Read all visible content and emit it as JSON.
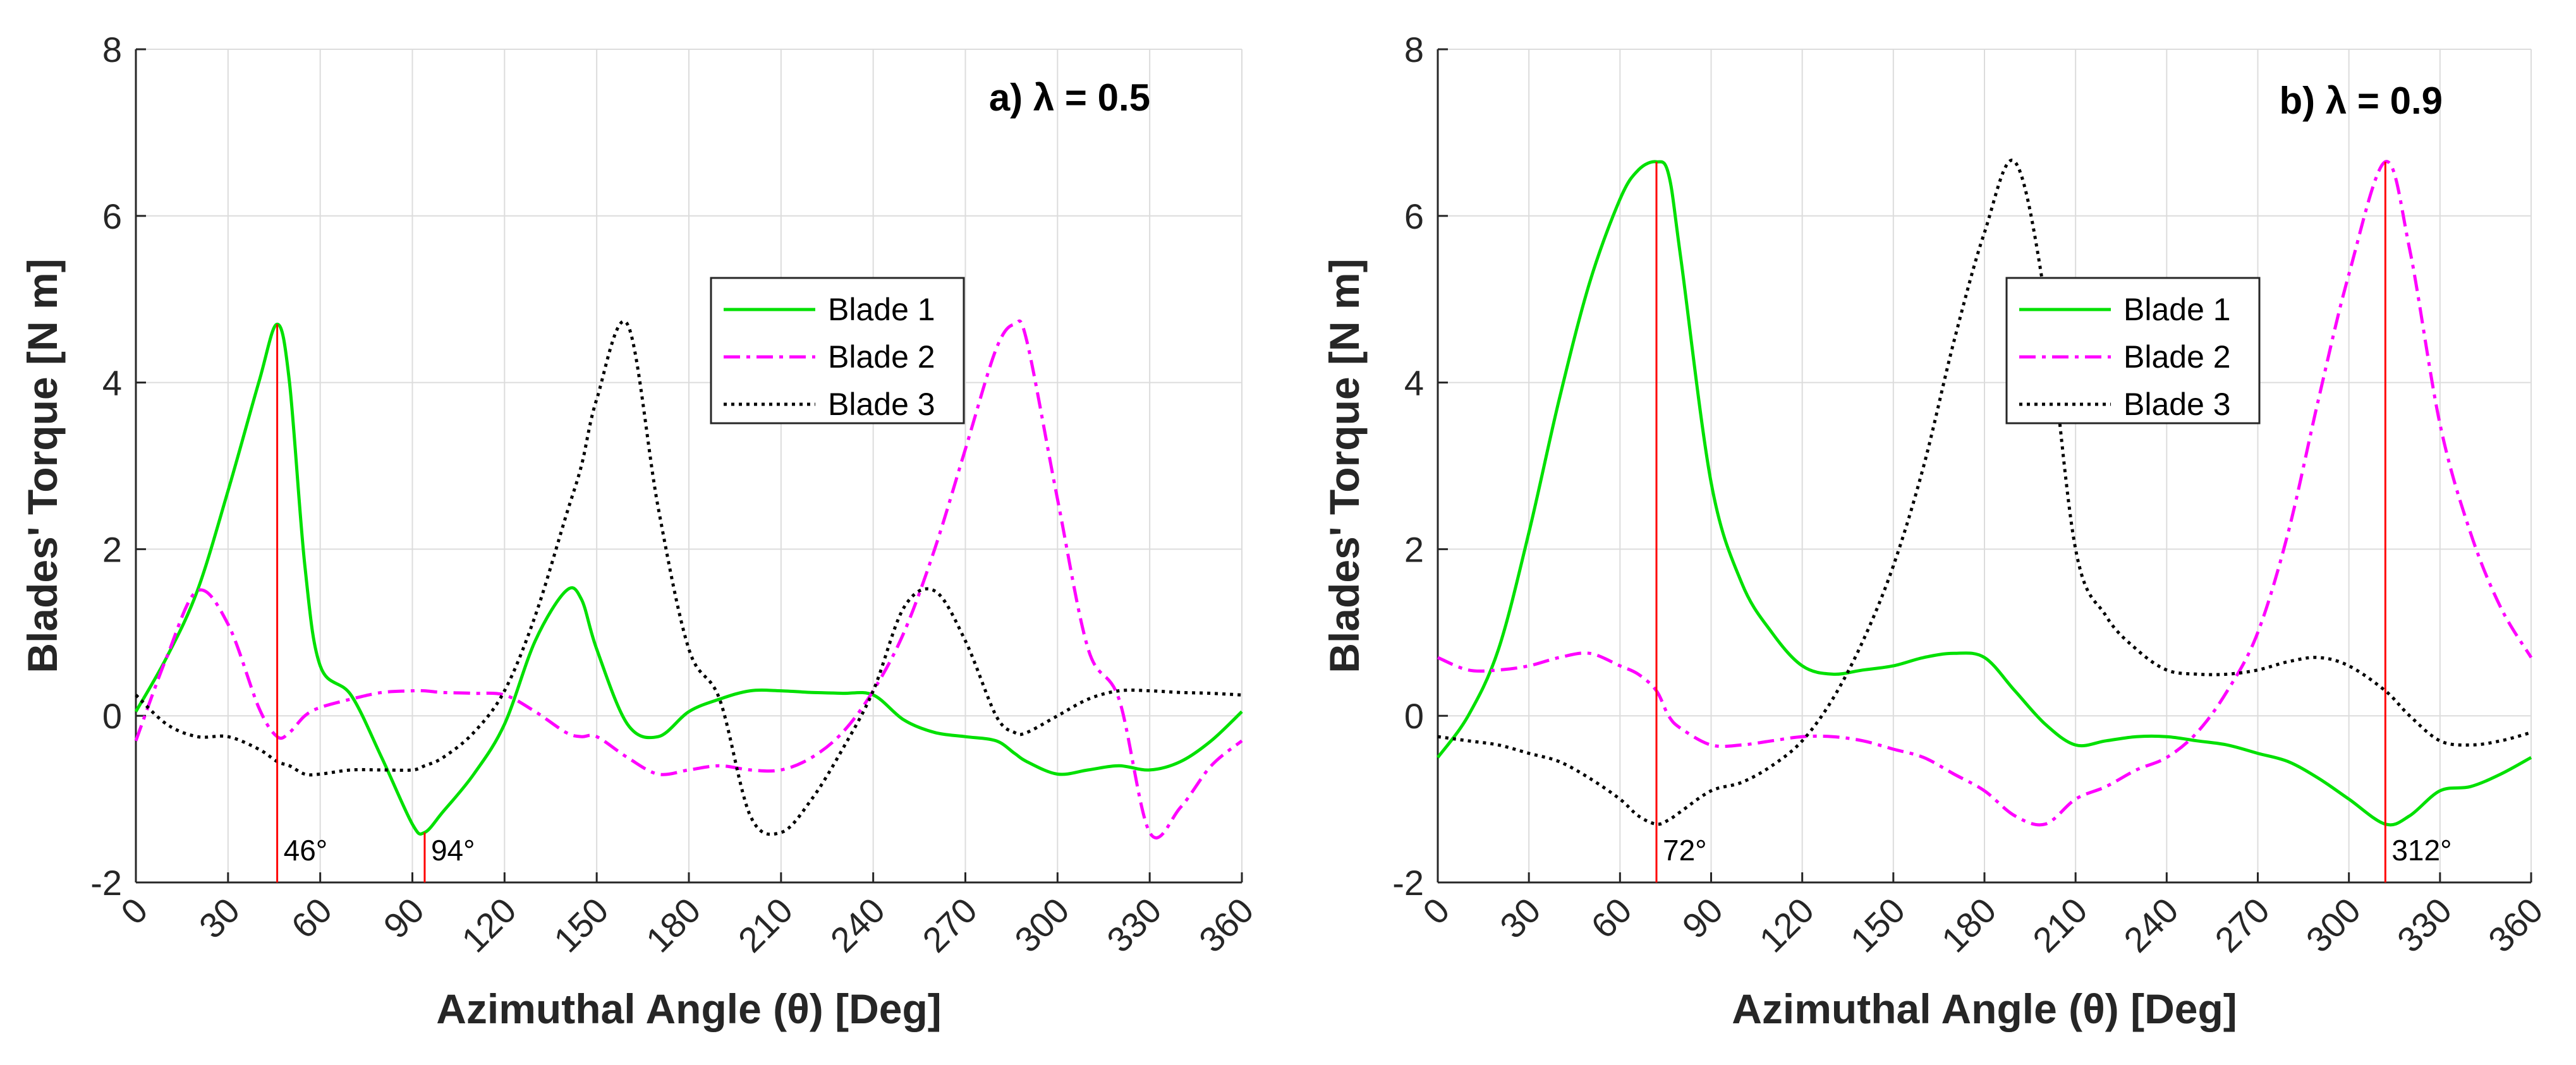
{
  "chart_data": [
    {
      "type": "line",
      "title": "a)  λ = 0.5",
      "xlabel": "Azimuthal Angle (θ)  [Deg]",
      "ylabel": "Blades' Torque [N m]",
      "xlim": [
        0,
        360
      ],
      "ylim": [
        -2,
        8
      ],
      "xticks": [
        0,
        30,
        60,
        90,
        120,
        150,
        180,
        210,
        240,
        270,
        300,
        330,
        360
      ],
      "xtick_labels": [
        "0",
        "30",
        "60",
        "90",
        "120",
        "150",
        "180",
        "210",
        "240",
        "270",
        "300",
        "330",
        "360"
      ],
      "yticks": [
        -2,
        0,
        2,
        4,
        6,
        8
      ],
      "ytick_labels": [
        "-2",
        "0",
        "2",
        "4",
        "6",
        "8"
      ],
      "grid": true,
      "legend_position": "center-right",
      "x": [
        0,
        10,
        20,
        30,
        40,
        46,
        50,
        55,
        60,
        70,
        80,
        90,
        94,
        100,
        110,
        120,
        130,
        140,
        145,
        150,
        160,
        170,
        180,
        190,
        200,
        210,
        220,
        230,
        240,
        250,
        260,
        270,
        280,
        286,
        290,
        300,
        310,
        320,
        330,
        340,
        350,
        360
      ],
      "series": [
        {
          "name": "Blade 1",
          "color": "#00e000",
          "dash": "solid",
          "values": [
            0.05,
            0.7,
            1.5,
            2.7,
            4.0,
            4.7,
            4.0,
            1.8,
            0.6,
            0.25,
            -0.5,
            -1.3,
            -1.4,
            -1.15,
            -0.7,
            -0.1,
            0.9,
            1.5,
            1.4,
            0.8,
            -0.1,
            -0.25,
            0.05,
            0.2,
            0.3,
            0.3,
            0.28,
            0.27,
            0.25,
            -0.05,
            -0.2,
            -0.25,
            -0.3,
            -0.45,
            -0.55,
            -0.7,
            -0.65,
            -0.6,
            -0.65,
            -0.55,
            -0.3,
            0.05
          ]
        },
        {
          "name": "Blade 2",
          "color": "#ff00ff",
          "dash": "dashdot",
          "values": [
            -0.3,
            0.7,
            1.5,
            1.1,
            0.1,
            -0.25,
            -0.2,
            0.0,
            0.1,
            0.2,
            0.28,
            0.3,
            0.3,
            0.28,
            0.27,
            0.25,
            0.05,
            -0.2,
            -0.25,
            -0.25,
            -0.5,
            -0.7,
            -0.65,
            -0.6,
            -0.65,
            -0.65,
            -0.5,
            -0.2,
            0.3,
            1.0,
            2.0,
            3.2,
            4.4,
            4.7,
            4.5,
            2.6,
            0.8,
            0.2,
            -1.4,
            -1.1,
            -0.6,
            -0.3
          ]
        },
        {
          "name": "Blade 3",
          "color": "#000000",
          "dash": "dotted",
          "values": [
            0.25,
            -0.1,
            -0.25,
            -0.25,
            -0.4,
            -0.55,
            -0.6,
            -0.7,
            -0.7,
            -0.65,
            -0.65,
            -0.65,
            -0.6,
            -0.5,
            -0.2,
            0.3,
            1.2,
            2.4,
            3.0,
            3.8,
            4.7,
            2.5,
            0.8,
            0.2,
            -1.2,
            -1.4,
            -1.0,
            -0.4,
            0.3,
            1.3,
            1.5,
            0.9,
            0.0,
            -0.2,
            -0.2,
            0.0,
            0.2,
            0.3,
            0.3,
            0.28,
            0.27,
            0.25
          ]
        }
      ],
      "annotations": [
        {
          "x": 46,
          "label": "46°",
          "color": "#ff0000"
        },
        {
          "x": 94,
          "label": "94°",
          "color": "#ff0000"
        }
      ]
    },
    {
      "type": "line",
      "title": "b)  λ = 0.9",
      "xlabel": "Azimuthal Angle (θ)  [Deg]",
      "ylabel": "Blades' Torque [N m]",
      "xlim": [
        0,
        360
      ],
      "ylim": [
        -2,
        8
      ],
      "xticks": [
        0,
        30,
        60,
        90,
        120,
        150,
        180,
        210,
        240,
        270,
        300,
        330,
        360
      ],
      "xtick_labels": [
        "0",
        "30",
        "60",
        "90",
        "120",
        "150",
        "180",
        "210",
        "240",
        "270",
        "300",
        "330",
        "360"
      ],
      "yticks": [
        -2,
        0,
        2,
        4,
        6,
        8
      ],
      "ytick_labels": [
        "-2",
        "0",
        "2",
        "4",
        "6",
        "8"
      ],
      "grid": true,
      "legend_position": "center-right",
      "x": [
        0,
        10,
        20,
        30,
        40,
        50,
        60,
        66,
        72,
        76,
        80,
        90,
        100,
        110,
        120,
        130,
        140,
        150,
        160,
        170,
        180,
        190,
        200,
        210,
        220,
        230,
        240,
        250,
        260,
        270,
        280,
        290,
        300,
        312,
        320,
        330,
        340,
        350,
        360
      ],
      "series": [
        {
          "name": "Blade 1",
          "color": "#00e000",
          "dash": "solid",
          "values": [
            -0.5,
            0.0,
            0.8,
            2.2,
            3.8,
            5.2,
            6.2,
            6.55,
            6.65,
            6.5,
            5.5,
            2.8,
            1.6,
            1.0,
            0.6,
            0.5,
            0.55,
            0.6,
            0.7,
            0.75,
            0.7,
            0.3,
            -0.1,
            -0.35,
            -0.3,
            -0.25,
            -0.25,
            -0.3,
            -0.35,
            -0.45,
            -0.55,
            -0.75,
            -1.0,
            -1.3,
            -1.2,
            -0.9,
            -0.85,
            -0.7,
            -0.5
          ]
        },
        {
          "name": "Blade 2",
          "color": "#ff00ff",
          "dash": "dashdot",
          "values": [
            0.7,
            0.55,
            0.55,
            0.6,
            0.7,
            0.75,
            0.6,
            0.5,
            0.3,
            0.0,
            -0.15,
            -0.35,
            -0.35,
            -0.3,
            -0.25,
            -0.25,
            -0.3,
            -0.4,
            -0.5,
            -0.7,
            -0.9,
            -1.2,
            -1.3,
            -1.0,
            -0.85,
            -0.65,
            -0.5,
            -0.2,
            0.3,
            1.0,
            2.2,
            3.8,
            5.3,
            6.65,
            5.6,
            3.5,
            2.2,
            1.3,
            0.7
          ]
        },
        {
          "name": "Blade 3",
          "color": "#000000",
          "dash": "dotted",
          "values": [
            -0.25,
            -0.3,
            -0.35,
            -0.45,
            -0.55,
            -0.75,
            -1.0,
            -1.2,
            -1.3,
            -1.25,
            -1.15,
            -0.9,
            -0.8,
            -0.6,
            -0.3,
            0.2,
            0.9,
            1.8,
            3.0,
            4.5,
            5.8,
            6.65,
            5.0,
            2.0,
            1.2,
            0.8,
            0.55,
            0.5,
            0.5,
            0.55,
            0.65,
            0.7,
            0.6,
            0.3,
            0.0,
            -0.3,
            -0.35,
            -0.3,
            -0.2
          ]
        }
      ],
      "annotations": [
        {
          "x": 72,
          "label": "72°",
          "color": "#ff0000"
        },
        {
          "x": 312,
          "label": "312°",
          "color": "#ff0000"
        }
      ]
    }
  ]
}
